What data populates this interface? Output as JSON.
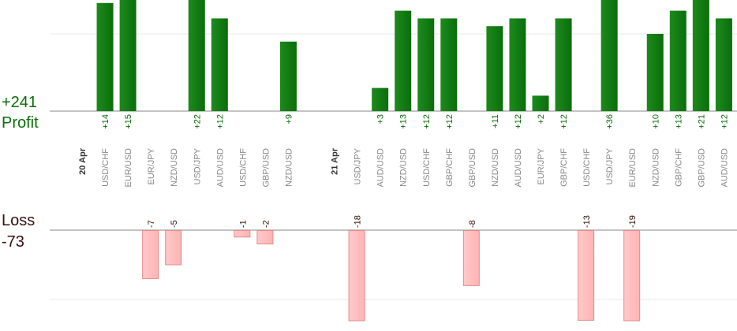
{
  "summary": {
    "profit_total": "+241",
    "profit_label": "Profit",
    "loss_label": "Loss",
    "loss_total": "-73"
  },
  "colors": {
    "profit_bar": "#0a6e0a",
    "profit_bar_light": "#1d8a1d",
    "loss_bar": "#ffb3b3",
    "loss_bar_border": "#e88a8a",
    "profit_text": "#0a6e0a",
    "loss_text": "#3a0d0d",
    "gridline": "#e9e9e9",
    "axis": "#888888",
    "tick_text": "#888888",
    "date_text": "#333333"
  },
  "chart_data": {
    "type": "bar",
    "gridlines": true,
    "legend": "none",
    "profit_ylim": [
      0,
      15
    ],
    "loss_ylim": [
      0,
      12
    ],
    "slots": [
      {
        "kind": "date",
        "label": "20 Apr"
      },
      {
        "kind": "trade",
        "label": "USD/CHF",
        "value": 14
      },
      {
        "kind": "trade",
        "label": "EUR/USD",
        "value": 15
      },
      {
        "kind": "trade",
        "label": "EUR/JPY",
        "value": -7
      },
      {
        "kind": "trade",
        "label": "NZD/USD",
        "value": -5
      },
      {
        "kind": "trade",
        "label": "USD/JPY",
        "value": 22
      },
      {
        "kind": "trade",
        "label": "AUD/USD",
        "value": 12
      },
      {
        "kind": "trade",
        "label": "USD/CHF",
        "value": -1
      },
      {
        "kind": "trade",
        "label": "GBP/USD",
        "value": -2
      },
      {
        "kind": "trade",
        "label": "NZD/USD",
        "value": 9
      },
      {
        "kind": "gap"
      },
      {
        "kind": "date",
        "label": "21 Apr"
      },
      {
        "kind": "trade",
        "label": "USD/JPY",
        "value": -18
      },
      {
        "kind": "trade",
        "label": "AUD/USD",
        "value": 3
      },
      {
        "kind": "trade",
        "label": "NZD/USD",
        "value": 13
      },
      {
        "kind": "trade",
        "label": "USD/CHF",
        "value": 12
      },
      {
        "kind": "trade",
        "label": "GBP/CHF",
        "value": 12
      },
      {
        "kind": "trade",
        "label": "GBP/USD",
        "value": -8
      },
      {
        "kind": "trade",
        "label": "NZD/USD",
        "value": 11
      },
      {
        "kind": "trade",
        "label": "AUD/USD",
        "value": 12
      },
      {
        "kind": "trade",
        "label": "EUR/JPY",
        "value": 2
      },
      {
        "kind": "trade",
        "label": "GBP/CHF",
        "value": 12
      },
      {
        "kind": "trade",
        "label": "USD/CHF",
        "value": -13
      },
      {
        "kind": "trade",
        "label": "USD/JPY",
        "value": 36
      },
      {
        "kind": "trade",
        "label": "EUR/USD",
        "value": -19
      },
      {
        "kind": "trade",
        "label": "NZD/USD",
        "value": 10
      },
      {
        "kind": "trade",
        "label": "GBP/CHF",
        "value": 13
      },
      {
        "kind": "trade",
        "label": "GBP/USD",
        "value": 21
      },
      {
        "kind": "trade",
        "label": "AUD/USD",
        "value": 12
      }
    ]
  }
}
